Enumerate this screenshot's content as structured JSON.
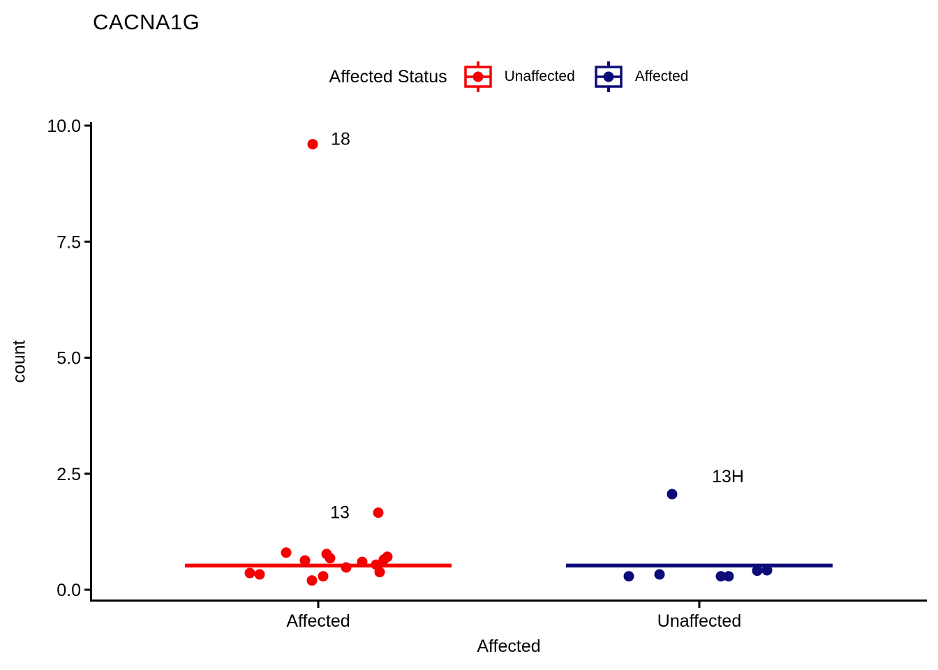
{
  "page": {
    "background": "#ffffff"
  },
  "chart_data": {
    "type": "scatter",
    "title": "CACNA1G",
    "xlabel": "Affected",
    "ylabel": "count",
    "ylim": [
      0,
      10
    ],
    "yticks": [
      0.0,
      2.5,
      5.0,
      7.5,
      10.0
    ],
    "ytick_labels": [
      "0.0",
      "2.5",
      "5.0",
      "7.5",
      "10.0"
    ],
    "categories": [
      "Affected",
      "Unaffected"
    ],
    "grid": false,
    "axis_color": "#000000",
    "annotation_color": "#000000",
    "legend": {
      "title": "Affected Status",
      "position": "top-center",
      "entries": [
        {
          "label": "Unaffected",
          "color": "#F40000"
        },
        {
          "label": "Affected",
          "color": "#0C0C78"
        }
      ]
    },
    "series": [
      {
        "name": "Unaffected",
        "category": "Affected",
        "color": "#F40000",
        "crossbar_y": 0.52,
        "points": [
          {
            "dx": -98,
            "y": 0.36
          },
          {
            "dx": -84,
            "y": 0.33
          },
          {
            "dx": -46,
            "y": 0.8
          },
          {
            "dx": -19,
            "y": 0.63
          },
          {
            "dx": -9,
            "y": 0.2
          },
          {
            "dx": 7,
            "y": 0.29
          },
          {
            "dx": 12,
            "y": 0.77
          },
          {
            "dx": 17,
            "y": 0.68
          },
          {
            "dx": 40,
            "y": 0.48
          },
          {
            "dx": 63,
            "y": 0.6
          },
          {
            "dx": 83,
            "y": 0.54
          },
          {
            "dx": 88,
            "y": 0.38
          },
          {
            "dx": 94,
            "y": 0.65
          },
          {
            "dx": 99,
            "y": 0.71
          },
          {
            "dx": 86,
            "y": 1.66,
            "label": "13",
            "label_dx": -55,
            "label_dy": -1
          },
          {
            "dx": -8,
            "y": 9.6,
            "label": "18",
            "label_dx": 40,
            "label_dy": -8
          }
        ]
      },
      {
        "name": "Affected",
        "category": "Unaffected",
        "color": "#0C0C78",
        "crossbar_y": 0.52,
        "points": [
          {
            "dx": -101,
            "y": 0.29
          },
          {
            "dx": -57,
            "y": 0.33
          },
          {
            "dx": 31,
            "y": 0.29
          },
          {
            "dx": 42,
            "y": 0.29
          },
          {
            "dx": 83,
            "y": 0.41
          },
          {
            "dx": 97,
            "y": 0.42
          },
          {
            "dx": -39,
            "y": 2.06,
            "label": "13H",
            "label_dx": 80,
            "label_dy": -26
          }
        ]
      }
    ]
  }
}
